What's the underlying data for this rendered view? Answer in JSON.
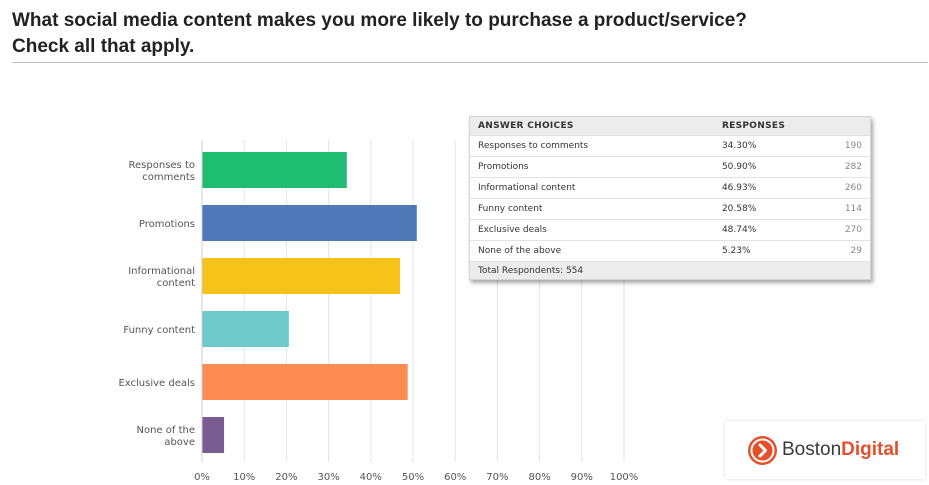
{
  "title": {
    "line1": "What social media content makes you more likely to purchase a product/service?",
    "line2": "Check all that apply."
  },
  "chart_data": {
    "type": "bar",
    "orientation": "horizontal",
    "categories": [
      [
        "Responses to",
        "comments"
      ],
      [
        "Promotions"
      ],
      [
        "Informational",
        "content"
      ],
      [
        "Funny content"
      ],
      [
        "Exclusive deals"
      ],
      [
        "None of the",
        "above"
      ]
    ],
    "values": [
      34.3,
      50.9,
      46.93,
      20.58,
      48.74,
      5.23
    ],
    "colors": [
      "#1ebd72",
      "#4f78b8",
      "#f7c21a",
      "#6ecaca",
      "#fd8c55",
      "#7a5c92"
    ],
    "xlim": [
      0,
      100
    ],
    "x_ticks": [
      "0%",
      "10%",
      "20%",
      "30%",
      "40%",
      "50%",
      "60%",
      "70%",
      "80%",
      "90%",
      "100%"
    ],
    "grid": true
  },
  "table": {
    "headers": [
      "ANSWER CHOICES",
      "RESPONSES",
      ""
    ],
    "rows": [
      {
        "choice": "Responses to comments",
        "percent": "34.30%",
        "count": "190"
      },
      {
        "choice": "Promotions",
        "percent": "50.90%",
        "count": "282"
      },
      {
        "choice": "Informational content",
        "percent": "46.93%",
        "count": "260"
      },
      {
        "choice": "Funny content",
        "percent": "20.58%",
        "count": "114"
      },
      {
        "choice": "Exclusive deals",
        "percent": "48.74%",
        "count": "270"
      },
      {
        "choice": "None of the above",
        "percent": "5.23%",
        "count": "29"
      }
    ],
    "total": "Total Respondents: 554"
  },
  "logo": {
    "part1": "Boston",
    "part2": "Digital"
  }
}
